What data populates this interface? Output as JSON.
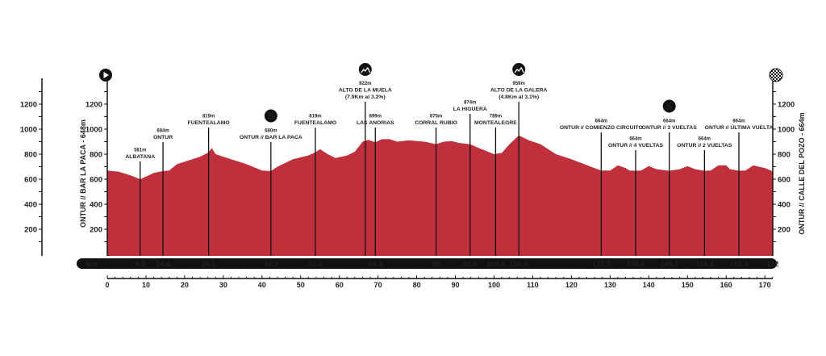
{
  "chart_data": {
    "type": "area",
    "start_label": "ONTUR // BAR LA PACA - 648m",
    "finish_label": "ONTUR // CALLE DEL POZO - 664m",
    "x_unit_label": "Km",
    "xlim": [
      0,
      172
    ],
    "ylim": [
      0,
      1300
    ],
    "x_ticks": [
      0,
      10,
      20,
      30,
      40,
      50,
      60,
      70,
      80,
      90,
      100,
      110,
      120,
      130,
      140,
      150,
      160,
      170
    ],
    "y_ticks": [
      200,
      400,
      600,
      800,
      1000,
      1200
    ],
    "fill_color": "#c0303c",
    "profile": {
      "km": [
        0,
        3,
        6,
        8.5,
        10,
        12,
        14.4,
        16,
        18,
        22,
        24,
        26.2,
        27,
        28,
        32,
        36,
        40,
        42.3,
        44,
        48,
        52,
        53.8,
        55,
        57,
        59,
        62,
        64,
        66,
        67.5,
        69.3,
        71,
        73,
        75,
        78,
        82,
        85,
        87,
        89,
        91,
        93.8,
        96,
        100,
        102,
        104,
        106.4,
        109,
        112,
        116,
        120,
        125,
        127.7,
        130,
        132,
        134,
        135,
        136.6,
        138,
        140,
        142,
        145.3,
        148,
        150,
        152,
        154.4,
        156,
        158,
        160,
        161,
        163.3,
        165,
        167,
        170,
        172
      ],
      "elev": [
        670,
        660,
        630,
        600,
        620,
        650,
        665,
        670,
        720,
        760,
        780,
        815,
        850,
        800,
        760,
        720,
        670,
        665,
        700,
        760,
        790,
        815,
        840,
        800,
        770,
        790,
        820,
        900,
        915,
        895,
        920,
        920,
        900,
        910,
        900,
        880,
        900,
        905,
        890,
        880,
        850,
        800,
        810,
        880,
        950,
        910,
        880,
        800,
        760,
        700,
        670,
        670,
        710,
        690,
        670,
        668,
        670,
        705,
        680,
        668,
        680,
        705,
        680,
        668,
        670,
        710,
        710,
        680,
        668,
        670,
        710,
        690,
        664
      ]
    },
    "km_points": [
      "8.5",
      "14.4",
      "26.2",
      "42.3",
      "53.8",
      "69.3",
      "85",
      "93.8",
      "100.4",
      "106.4",
      "127.7",
      "136.6",
      "145.3",
      "154.4",
      "163.3",
      "172"
    ],
    "waypoints": [
      {
        "km": 8.5,
        "alt": "581m",
        "name": "ALBATANA",
        "icon": ""
      },
      {
        "km": 14.4,
        "alt": "684m",
        "name": "ONTUR",
        "icon": ""
      },
      {
        "km": 26.2,
        "alt": "819m",
        "name": "FUENTEALAMO",
        "icon": ""
      },
      {
        "km": 42.3,
        "alt": "680m",
        "name": "ONTUR // BAR LA PACA",
        "icon": "sprint-icon"
      },
      {
        "km": 53.8,
        "alt": "819m",
        "name": "FUENTEALAMO",
        "icon": ""
      },
      {
        "km": 69.3,
        "alt": "922m",
        "name": "ALTO DE LA MUELA",
        "sub": "(7.9Km al 3.2%)",
        "icon": "mountain-icon"
      },
      {
        "km": 69.3,
        "alt": "899m",
        "name": "LAS ANORIAS",
        "icon": ""
      },
      {
        "km": 85,
        "alt": "875m",
        "name": "CORRAL RUBIO",
        "icon": ""
      },
      {
        "km": 93.8,
        "alt": "874m",
        "name": "LA HIGUERA",
        "icon": ""
      },
      {
        "km": 100.4,
        "alt": "789m",
        "name": "MONTEALEGRE",
        "icon": ""
      },
      {
        "km": 106.4,
        "alt": "959m",
        "name": "ALTO DE LA GALERA",
        "sub": "(4.8Km al 3.1%)",
        "icon": "mountain-icon"
      },
      {
        "km": 127.7,
        "alt": "664m",
        "name": "ONTUR // COMIENZO CIRCUITO",
        "icon": ""
      },
      {
        "km": 136.6,
        "alt": "664m",
        "name": "ONTUR // 4 VUELTAS",
        "icon": ""
      },
      {
        "km": 145.3,
        "alt": "664m",
        "name": "ONTUR // 3 VUELTAS",
        "icon": "sprint-icon"
      },
      {
        "km": 154.4,
        "alt": "664m",
        "name": "ONTUR // 2 VUELTAS",
        "icon": ""
      },
      {
        "km": 163.3,
        "alt": "664m",
        "name": "ONTUR // ÚLTIMA VUELTA",
        "icon": ""
      }
    ],
    "sprint_letter": "S",
    "icons": {
      "start": "play-icon",
      "finish": "checkered-flag-icon"
    }
  }
}
